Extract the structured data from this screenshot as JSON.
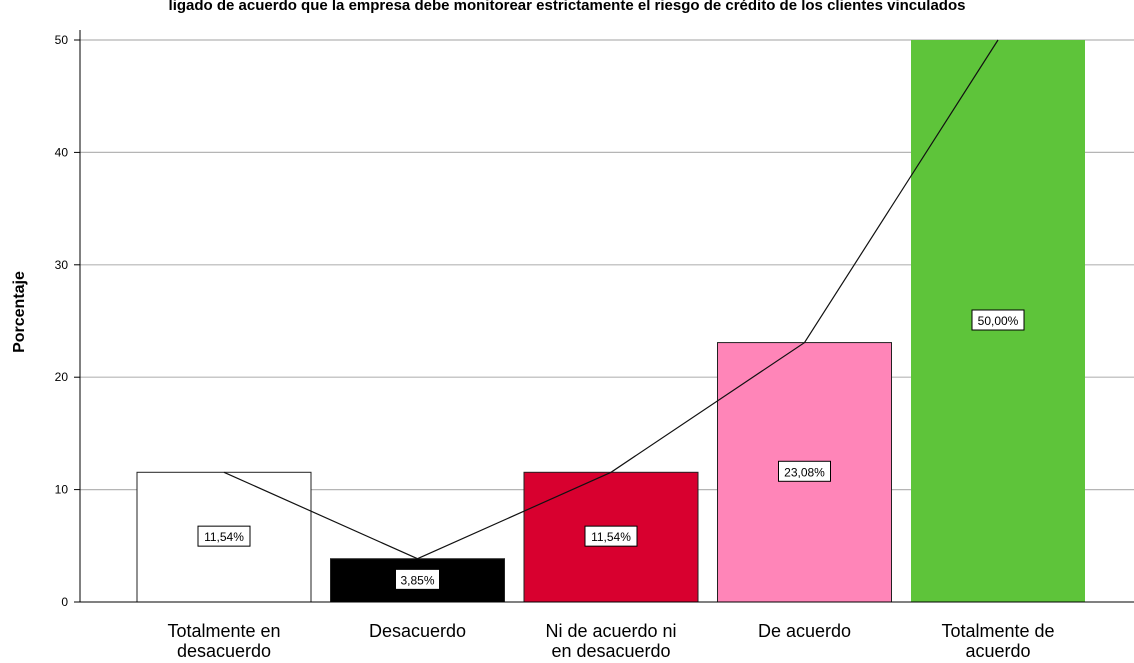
{
  "chart_data": {
    "type": "bar",
    "title": "ligado de acuerdo que la empresa debe monitorear estrictamente el riesgo de crédito de los clientes vinculados",
    "ylabel": "Porcentaje",
    "xlabel": "",
    "ylim": [
      0,
      50
    ],
    "yticks": [
      "0",
      "10",
      "20",
      "30",
      "40",
      "50"
    ],
    "categories": [
      [
        "Totalmente en",
        "desacuerdo"
      ],
      [
        "Desacuerdo"
      ],
      [
        "Ni de acuerdo ni",
        "en desacuerdo"
      ],
      [
        "De acuerdo"
      ],
      [
        "Totalmente de",
        "acuerdo"
      ]
    ],
    "values": [
      11.54,
      3.85,
      11.54,
      23.08,
      50.0
    ],
    "data_labels": [
      "11,54%",
      "3,85%",
      "11,54%",
      "23,08%",
      "50,00%"
    ],
    "colors": [
      "#ffffff",
      "#000000",
      "#d8002f",
      "#ff85b8",
      "#5ec43a"
    ],
    "cumulative_line": true,
    "grid": true
  }
}
